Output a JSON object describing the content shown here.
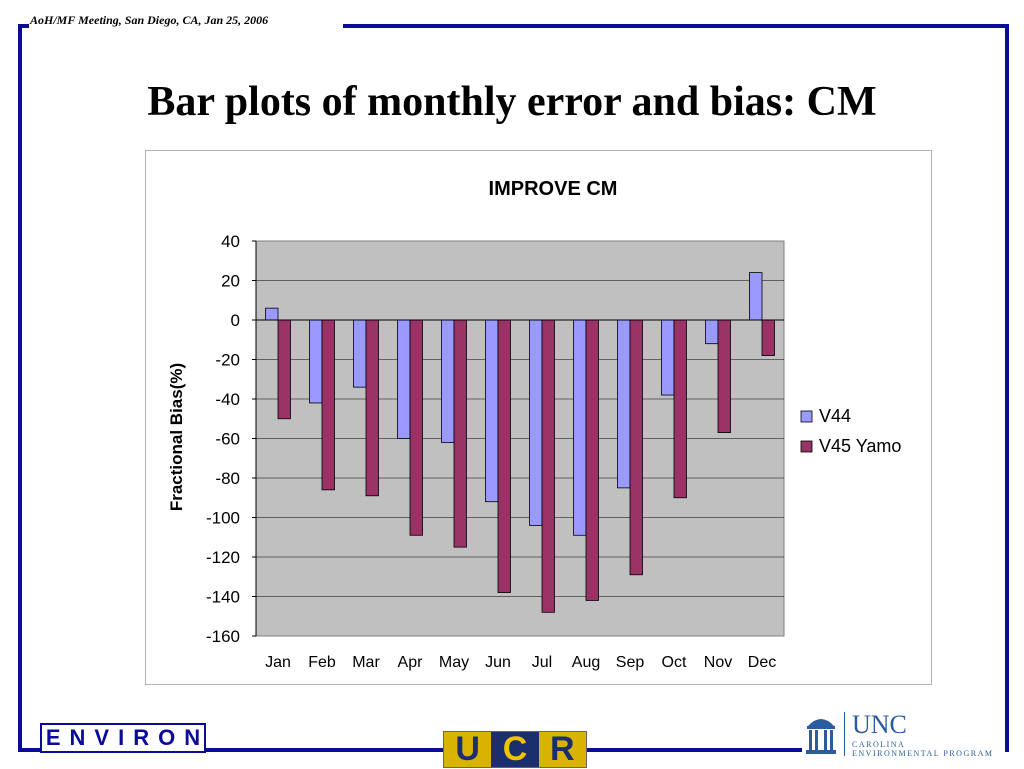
{
  "header_note": "AoH/MF Meeting, San Diego, CA,  Jan 25, 2006",
  "slide_title": "Bar plots of monthly error and bias: CM",
  "logos": {
    "environ": "ENVIRON",
    "ucr": [
      "U",
      "C",
      "R"
    ],
    "unc_name": "UNC",
    "unc_sub1": "CAROLINA",
    "unc_sub2": "ENVIRONMENTAL PROGRAM"
  },
  "colors": {
    "frame": "#0b0b99",
    "plot_bg": "#c0c0c0",
    "series_v44": "#9999ff",
    "series_v45": "#993366"
  },
  "chart_data": {
    "type": "bar",
    "title": "IMPROVE CM",
    "xlabel": "",
    "ylabel": "Fractional Bias(%)",
    "ylim": [
      -160,
      40
    ],
    "yticks": [
      40,
      20,
      0,
      -20,
      -40,
      -60,
      -80,
      -100,
      -120,
      -140,
      -160
    ],
    "grid": true,
    "legend_position": "right",
    "categories": [
      "Jan",
      "Feb",
      "Mar",
      "Apr",
      "May",
      "Jun",
      "Jul",
      "Aug",
      "Sep",
      "Oct",
      "Nov",
      "Dec"
    ],
    "series": [
      {
        "name": "V44",
        "color": "#9999ff",
        "values": [
          6,
          -42,
          -34,
          -60,
          -62,
          -92,
          -104,
          -109,
          -85,
          -38,
          -12,
          24
        ]
      },
      {
        "name": "V45 Yamo",
        "color": "#993366",
        "values": [
          -50,
          -86,
          -89,
          -109,
          -115,
          -138,
          -148,
          -142,
          -129,
          -90,
          -57,
          -18
        ]
      }
    ]
  }
}
